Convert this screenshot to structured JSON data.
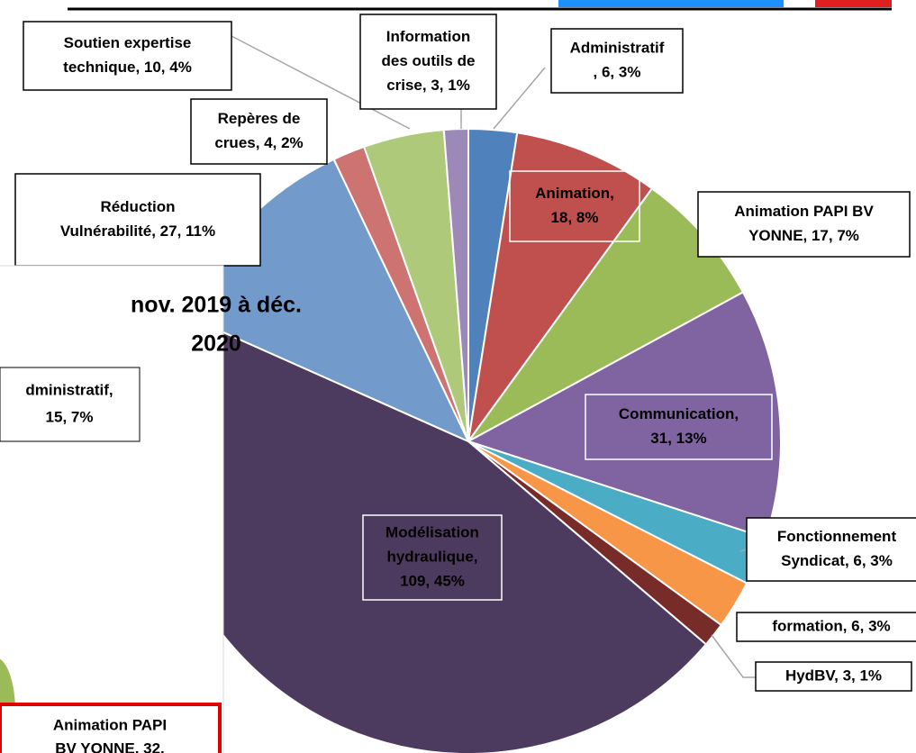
{
  "chart_data": {
    "type": "pie",
    "values": [
      6,
      18,
      17,
      31,
      6,
      6,
      3,
      109,
      27,
      4,
      10,
      3
    ],
    "value_labels": [
      [
        "Administratif",
        ", 6, 3%"
      ],
      [
        "Animation,",
        "18, 8%"
      ],
      [
        "Animation PAPI BV",
        "YONNE, 17, 7%"
      ],
      [
        "Communication,",
        "31, 13%"
      ],
      [
        "Fonctionnement",
        "Syndicat, 6, 3%"
      ],
      [
        "formation, 6, 3%"
      ],
      [
        "HydBV, 3, 1%"
      ],
      [
        "Modélisation",
        "hydraulique,",
        "109, 45%"
      ],
      [
        "Réduction",
        "Vulnérabilité, 27, 11%"
      ],
      [
        "Repères de",
        "crues, 4, 2%"
      ],
      [
        "Soutien expertise",
        "technique, 10, 4%"
      ],
      [
        "Information",
        "des outils de",
        "crise, 3, 1%"
      ]
    ],
    "colors": [
      "#4f81bd",
      "#c0504d",
      "#9bbb59",
      "#8064a2",
      "#4bacc6",
      "#f79646",
      "#772c2a",
      "#4d3b5f",
      "#729aca",
      "#cd7371",
      "#afc97a",
      "#9c89b8"
    ],
    "annotations": [
      [
        "nov. 2019 à déc.",
        "2020"
      ],
      [
        "dministratif,",
        "15, 7%"
      ],
      [
        "Animation PAPI",
        "BV YONNE, 32,"
      ]
    ]
  }
}
